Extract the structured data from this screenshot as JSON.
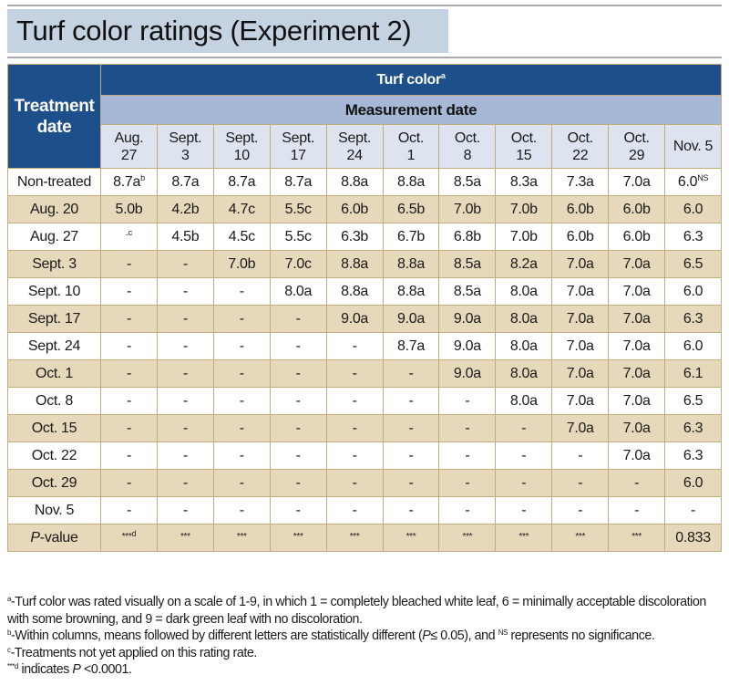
{
  "title": "Turf color ratings (Experiment 2)",
  "table": {
    "row_header": "Treatment date",
    "row_header_lines": [
      "Treatment",
      "date"
    ],
    "group_header": "Turf color",
    "group_header_sup": "a",
    "subgroup_header": "Measurement date",
    "columns": [
      {
        "line1": "Aug.",
        "line2": "27"
      },
      {
        "line1": "Sept.",
        "line2": "3"
      },
      {
        "line1": "Sept.",
        "line2": "10"
      },
      {
        "line1": "Sept.",
        "line2": "17"
      },
      {
        "line1": "Sept.",
        "line2": "24"
      },
      {
        "line1": "Oct.",
        "line2": "1"
      },
      {
        "line1": "Oct.",
        "line2": "8"
      },
      {
        "line1": "Oct.",
        "line2": "15"
      },
      {
        "line1": "Oct.",
        "line2": "22"
      },
      {
        "line1": "Oct.",
        "line2": "29"
      },
      {
        "line1": "Nov. 5",
        "line2": ""
      }
    ],
    "rows": [
      {
        "label": "Non-treated",
        "cells": [
          "8.7a",
          "8.7a",
          "8.7a",
          "8.7a",
          "8.8a",
          "8.8a",
          "8.5a",
          "8.3a",
          "7.3a",
          "7.0a",
          "6.0"
        ],
        "sups": {
          "0": "b",
          "10": "NS"
        }
      },
      {
        "label": "Aug. 20",
        "cells": [
          "5.0b",
          "4.2b",
          "4.7c",
          "5.5c",
          "6.0b",
          "6.5b",
          "7.0b",
          "7.0b",
          "6.0b",
          "6.0b",
          "6.0"
        ]
      },
      {
        "label": "Aug. 27",
        "cells": [
          "-",
          "4.5b",
          "4.5c",
          "5.5c",
          "6.3b",
          "6.7b",
          "6.8b",
          "7.0b",
          "6.0b",
          "6.0b",
          "6.3"
        ],
        "sups": {
          "0": "c"
        }
      },
      {
        "label": "Sept. 3",
        "cells": [
          "-",
          "-",
          "7.0b",
          "7.0c",
          "8.8a",
          "8.8a",
          "8.5a",
          "8.2a",
          "7.0a",
          "7.0a",
          "6.5"
        ]
      },
      {
        "label": "Sept. 10",
        "cells": [
          "-",
          "-",
          "-",
          "8.0a",
          "8.8a",
          "8.8a",
          "8.5a",
          "8.0a",
          "7.0a",
          "7.0a",
          "6.0"
        ]
      },
      {
        "label": "Sept. 17",
        "cells": [
          "-",
          "-",
          "-",
          "-",
          "9.0a",
          "9.0a",
          "9.0a",
          "8.0a",
          "7.0a",
          "7.0a",
          "6.3"
        ]
      },
      {
        "label": "Sept. 24",
        "cells": [
          "-",
          "-",
          "-",
          "-",
          "-",
          "8.7a",
          "9.0a",
          "8.0a",
          "7.0a",
          "7.0a",
          "6.0"
        ]
      },
      {
        "label": "Oct. 1",
        "cells": [
          "-",
          "-",
          "-",
          "-",
          "-",
          "-",
          "9.0a",
          "8.0a",
          "7.0a",
          "7.0a",
          "6.1"
        ]
      },
      {
        "label": "Oct. 8",
        "cells": [
          "-",
          "-",
          "-",
          "-",
          "-",
          "-",
          "-",
          "8.0a",
          "7.0a",
          "7.0a",
          "6.5"
        ]
      },
      {
        "label": "Oct. 15",
        "cells": [
          "-",
          "-",
          "-",
          "-",
          "-",
          "-",
          "-",
          "-",
          "7.0a",
          "7.0a",
          "6.3"
        ]
      },
      {
        "label": "Oct. 22",
        "cells": [
          "-",
          "-",
          "-",
          "-",
          "-",
          "-",
          "-",
          "-",
          "-",
          "7.0a",
          "6.3"
        ]
      },
      {
        "label": "Oct. 29",
        "cells": [
          "-",
          "-",
          "-",
          "-",
          "-",
          "-",
          "-",
          "-",
          "-",
          "-",
          "6.0"
        ]
      },
      {
        "label": "Nov. 5",
        "cells": [
          "-",
          "-",
          "-",
          "-",
          "-",
          "-",
          "-",
          "-",
          "-",
          "-",
          "-"
        ]
      }
    ],
    "pvalue_row": {
      "label_italic": "P",
      "label_rest": "-value",
      "cells": [
        "***",
        "***",
        "***",
        "***",
        "***",
        "***",
        "***",
        "***",
        "***",
        "***",
        "0.833"
      ],
      "sups": {
        "0": "d"
      }
    }
  },
  "footnotes": [
    {
      "mark": "a",
      "text": "-Turf color was rated visually on a scale of 1-9, in which 1 = completely bleached white leaf, 6 = minimally acceptable discoloration with some browning, and 9 = dark green leaf with no discoloration."
    },
    {
      "mark": "b",
      "text_before": "-Within columns, means followed by different letters are statistically different (",
      "italic": "P",
      "text_mid": "≤ 0.05), and ",
      "sup2": "NS",
      "text_after": " represents no significance."
    },
    {
      "mark": "c",
      "text": "-Treatments not yet applied on this rating rate."
    },
    {
      "mark": "***d",
      "text_before": " indicates ",
      "italic": "P",
      "text_after": " <0.0001."
    }
  ],
  "colors": {
    "header_dark_blue": "#1d4f8a",
    "header_light_blue": "#a6b8d5",
    "date_header_bg": "#dde4ef",
    "row_tan": "#e6d8bb",
    "border_tan": "#c2ab7c",
    "title_bg": "#c4d2e2"
  }
}
